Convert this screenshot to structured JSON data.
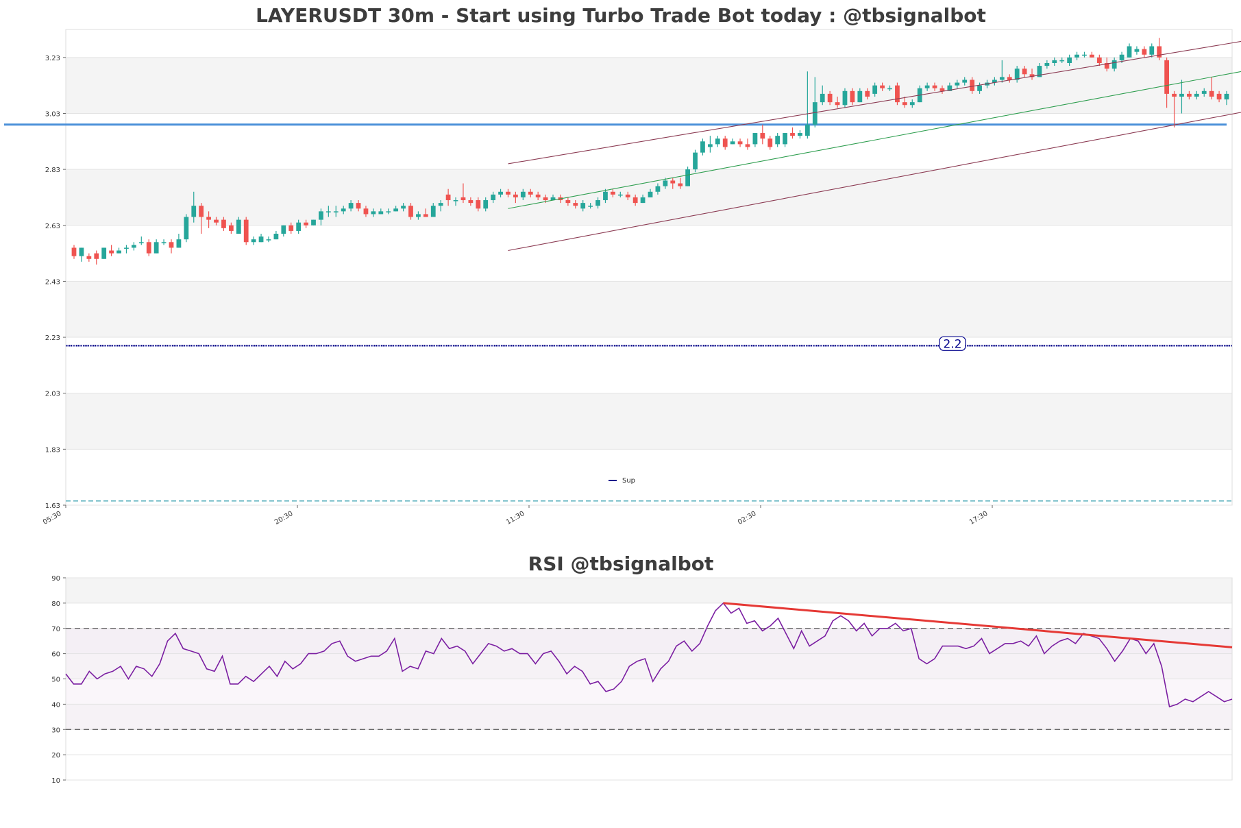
{
  "chart_data": [
    {
      "type": "candlestick",
      "title": "LAYERUSDT 30m - Start using Turbo Trade Bot today : @tbsignalbot",
      "ylim": [
        1.63,
        3.33
      ],
      "y_ticks": [
        "3.23",
        "3.03",
        "2.83",
        "2.63",
        "2.43",
        "2.23",
        "2.03",
        "1.83",
        "1.63"
      ],
      "x_ticks": [
        "05:30",
        "20:30",
        "11:30",
        "02:30",
        "17:30"
      ],
      "grid": true,
      "background_bands": true,
      "colors": {
        "up": "#26a69a",
        "down": "#ef5350",
        "channel": "#8b3a52",
        "mid_line": "#2e9e4f",
        "resistance": "#4a90d9",
        "support": "#00008b",
        "lower_dash": "#3aa0b0",
        "band": "#f4f4f4"
      },
      "candles": [
        [
          2.55,
          2.56,
          2.51,
          2.52
        ],
        [
          2.52,
          2.55,
          2.5,
          2.55
        ],
        [
          2.52,
          2.53,
          2.5,
          2.51
        ],
        [
          2.53,
          2.54,
          2.49,
          2.51
        ],
        [
          2.51,
          2.55,
          2.51,
          2.55
        ],
        [
          2.54,
          2.56,
          2.52,
          2.53
        ],
        [
          2.53,
          2.55,
          2.53,
          2.54
        ],
        [
          2.55,
          2.56,
          2.53,
          2.55
        ],
        [
          2.55,
          2.57,
          2.54,
          2.56
        ],
        [
          2.57,
          2.59,
          2.56,
          2.57
        ],
        [
          2.57,
          2.58,
          2.52,
          2.53
        ],
        [
          2.53,
          2.58,
          2.53,
          2.57
        ],
        [
          2.57,
          2.58,
          2.56,
          2.57
        ],
        [
          2.57,
          2.58,
          2.53,
          2.55
        ],
        [
          2.55,
          2.6,
          2.55,
          2.58
        ],
        [
          2.58,
          2.67,
          2.57,
          2.66
        ],
        [
          2.66,
          2.75,
          2.64,
          2.7
        ],
        [
          2.7,
          2.71,
          2.6,
          2.66
        ],
        [
          2.66,
          2.68,
          2.62,
          2.65
        ],
        [
          2.65,
          2.66,
          2.63,
          2.64
        ],
        [
          2.65,
          2.66,
          2.61,
          2.62
        ],
        [
          2.63,
          2.64,
          2.6,
          2.61
        ],
        [
          2.6,
          2.66,
          2.6,
          2.65
        ],
        [
          2.65,
          2.66,
          2.56,
          2.57
        ],
        [
          2.57,
          2.59,
          2.56,
          2.58
        ],
        [
          2.57,
          2.6,
          2.57,
          2.59
        ],
        [
          2.58,
          2.59,
          2.57,
          2.58
        ],
        [
          2.58,
          2.61,
          2.58,
          2.6
        ],
        [
          2.6,
          2.63,
          2.59,
          2.63
        ],
        [
          2.63,
          2.64,
          2.6,
          2.61
        ],
        [
          2.61,
          2.65,
          2.6,
          2.64
        ],
        [
          2.64,
          2.65,
          2.62,
          2.63
        ],
        [
          2.63,
          2.65,
          2.63,
          2.65
        ],
        [
          2.65,
          2.69,
          2.63,
          2.68
        ],
        [
          2.68,
          2.7,
          2.66,
          2.68
        ],
        [
          2.68,
          2.7,
          2.66,
          2.68
        ],
        [
          2.68,
          2.7,
          2.67,
          2.69
        ],
        [
          2.69,
          2.72,
          2.68,
          2.71
        ],
        [
          2.71,
          2.72,
          2.68,
          2.69
        ],
        [
          2.69,
          2.7,
          2.66,
          2.67
        ],
        [
          2.67,
          2.69,
          2.66,
          2.68
        ],
        [
          2.67,
          2.69,
          2.67,
          2.68
        ],
        [
          2.68,
          2.69,
          2.67,
          2.68
        ],
        [
          2.68,
          2.7,
          2.68,
          2.69
        ],
        [
          2.69,
          2.71,
          2.68,
          2.7
        ],
        [
          2.7,
          2.71,
          2.65,
          2.66
        ],
        [
          2.66,
          2.68,
          2.65,
          2.67
        ],
        [
          2.67,
          2.69,
          2.66,
          2.66
        ],
        [
          2.66,
          2.71,
          2.66,
          2.7
        ],
        [
          2.7,
          2.72,
          2.68,
          2.71
        ],
        [
          2.74,
          2.76,
          2.7,
          2.72
        ],
        [
          2.72,
          2.73,
          2.7,
          2.72
        ],
        [
          2.73,
          2.78,
          2.71,
          2.72
        ],
        [
          2.72,
          2.73,
          2.7,
          2.71
        ],
        [
          2.72,
          2.73,
          2.68,
          2.69
        ],
        [
          2.69,
          2.73,
          2.68,
          2.72
        ],
        [
          2.72,
          2.75,
          2.71,
          2.74
        ],
        [
          2.74,
          2.76,
          2.73,
          2.75
        ],
        [
          2.75,
          2.76,
          2.73,
          2.74
        ],
        [
          2.74,
          2.75,
          2.71,
          2.73
        ],
        [
          2.73,
          2.76,
          2.72,
          2.75
        ],
        [
          2.75,
          2.76,
          2.73,
          2.74
        ],
        [
          2.74,
          2.75,
          2.72,
          2.73
        ],
        [
          2.73,
          2.74,
          2.71,
          2.72
        ],
        [
          2.72,
          2.74,
          2.72,
          2.73
        ],
        [
          2.73,
          2.74,
          2.71,
          2.72
        ],
        [
          2.72,
          2.73,
          2.7,
          2.71
        ],
        [
          2.71,
          2.72,
          2.69,
          2.7
        ],
        [
          2.69,
          2.72,
          2.68,
          2.71
        ],
        [
          2.7,
          2.71,
          2.69,
          2.7
        ],
        [
          2.7,
          2.73,
          2.69,
          2.72
        ],
        [
          2.72,
          2.76,
          2.71,
          2.75
        ],
        [
          2.75,
          2.76,
          2.73,
          2.74
        ],
        [
          2.74,
          2.75,
          2.73,
          2.74
        ],
        [
          2.74,
          2.75,
          2.72,
          2.73
        ],
        [
          2.73,
          2.74,
          2.7,
          2.71
        ],
        [
          2.71,
          2.74,
          2.71,
          2.73
        ],
        [
          2.73,
          2.76,
          2.73,
          2.75
        ],
        [
          2.75,
          2.78,
          2.74,
          2.77
        ],
        [
          2.77,
          2.8,
          2.76,
          2.79
        ],
        [
          2.79,
          2.8,
          2.76,
          2.78
        ],
        [
          2.78,
          2.8,
          2.76,
          2.77
        ],
        [
          2.77,
          2.84,
          2.77,
          2.83
        ],
        [
          2.83,
          2.9,
          2.82,
          2.89
        ],
        [
          2.89,
          2.94,
          2.88,
          2.93
        ],
        [
          2.91,
          2.95,
          2.89,
          2.92
        ],
        [
          2.92,
          2.95,
          2.91,
          2.94
        ],
        [
          2.94,
          2.95,
          2.9,
          2.91
        ],
        [
          2.92,
          2.94,
          2.92,
          2.93
        ],
        [
          2.93,
          2.94,
          2.91,
          2.92
        ],
        [
          2.92,
          2.94,
          2.9,
          2.91
        ],
        [
          2.92,
          2.96,
          2.91,
          2.96
        ],
        [
          2.96,
          2.99,
          2.92,
          2.94
        ],
        [
          2.94,
          2.95,
          2.9,
          2.91
        ],
        [
          2.92,
          2.96,
          2.91,
          2.95
        ],
        [
          2.92,
          2.96,
          2.91,
          2.96
        ],
        [
          2.96,
          2.98,
          2.94,
          2.95
        ],
        [
          2.95,
          2.97,
          2.94,
          2.96
        ],
        [
          2.95,
          3.18,
          2.94,
          2.99
        ],
        [
          2.99,
          3.16,
          2.98,
          3.07
        ],
        [
          3.07,
          3.13,
          3.06,
          3.1
        ],
        [
          3.1,
          3.11,
          3.06,
          3.07
        ],
        [
          3.07,
          3.09,
          3.05,
          3.06
        ],
        [
          3.06,
          3.12,
          3.05,
          3.11
        ],
        [
          3.11,
          3.12,
          3.06,
          3.07
        ],
        [
          3.07,
          3.12,
          3.07,
          3.11
        ],
        [
          3.11,
          3.12,
          3.08,
          3.09
        ],
        [
          3.1,
          3.14,
          3.09,
          3.13
        ],
        [
          3.13,
          3.14,
          3.11,
          3.12
        ],
        [
          3.12,
          3.13,
          3.11,
          3.12
        ],
        [
          3.13,
          3.14,
          3.06,
          3.07
        ],
        [
          3.07,
          3.09,
          3.05,
          3.06
        ],
        [
          3.06,
          3.08,
          3.05,
          3.07
        ],
        [
          3.07,
          3.13,
          3.07,
          3.12
        ],
        [
          3.12,
          3.14,
          3.11,
          3.13
        ],
        [
          3.13,
          3.14,
          3.11,
          3.12
        ],
        [
          3.12,
          3.13,
          3.1,
          3.11
        ],
        [
          3.11,
          3.14,
          3.11,
          3.13
        ],
        [
          3.13,
          3.15,
          3.12,
          3.14
        ],
        [
          3.14,
          3.16,
          3.13,
          3.15
        ],
        [
          3.15,
          3.16,
          3.1,
          3.11
        ],
        [
          3.11,
          3.14,
          3.1,
          3.13
        ],
        [
          3.13,
          3.15,
          3.12,
          3.14
        ],
        [
          3.14,
          3.16,
          3.13,
          3.15
        ],
        [
          3.15,
          3.22,
          3.14,
          3.16
        ],
        [
          3.16,
          3.17,
          3.14,
          3.15
        ],
        [
          3.15,
          3.2,
          3.14,
          3.19
        ],
        [
          3.19,
          3.2,
          3.16,
          3.17
        ],
        [
          3.17,
          3.19,
          3.15,
          3.16
        ],
        [
          3.16,
          3.21,
          3.16,
          3.2
        ],
        [
          3.2,
          3.22,
          3.19,
          3.21
        ],
        [
          3.21,
          3.23,
          3.2,
          3.22
        ],
        [
          3.22,
          3.23,
          3.21,
          3.22
        ],
        [
          3.21,
          3.24,
          3.2,
          3.23
        ],
        [
          3.23,
          3.25,
          3.22,
          3.24
        ],
        [
          3.24,
          3.25,
          3.23,
          3.24
        ],
        [
          3.24,
          3.25,
          3.23,
          3.23
        ],
        [
          3.23,
          3.24,
          3.2,
          3.21
        ],
        [
          3.21,
          3.23,
          3.18,
          3.19
        ],
        [
          3.19,
          3.23,
          3.18,
          3.22
        ],
        [
          3.22,
          3.25,
          3.21,
          3.24
        ],
        [
          3.23,
          3.28,
          3.23,
          3.27
        ],
        [
          3.25,
          3.27,
          3.24,
          3.26
        ],
        [
          3.26,
          3.27,
          3.23,
          3.24
        ],
        [
          3.24,
          3.28,
          3.23,
          3.27
        ],
        [
          3.27,
          3.3,
          3.22,
          3.23
        ],
        [
          3.22,
          3.23,
          3.05,
          3.1
        ],
        [
          3.1,
          3.11,
          2.98,
          3.09
        ],
        [
          3.09,
          3.15,
          3.03,
          3.1
        ],
        [
          3.1,
          3.11,
          3.08,
          3.09
        ],
        [
          3.09,
          3.11,
          3.08,
          3.1
        ],
        [
          3.1,
          3.12,
          3.09,
          3.11
        ],
        [
          3.11,
          3.16,
          3.08,
          3.09
        ],
        [
          3.1,
          3.11,
          3.07,
          3.08
        ],
        [
          3.08,
          3.11,
          3.06,
          3.1
        ]
      ],
      "lines": {
        "resistance": 2.99,
        "support": 2.2,
        "support_label": "2.2",
        "lower_dash": 1.645,
        "channel_upper": {
          "x": [
            58,
            170
          ],
          "y": [
            2.85,
            3.35
          ]
        },
        "channel_lower": {
          "x": [
            58,
            175
          ],
          "y": [
            2.54,
            3.13
          ]
        },
        "channel_mid": {
          "x": [
            58,
            180
          ],
          "y": [
            2.69,
            3.3
          ]
        }
      },
      "legend": [
        {
          "name": "Sup",
          "color": "#00008b"
        }
      ],
      "legend_position": "bottom-center"
    },
    {
      "type": "line",
      "title": "RSI @tbsignalbot",
      "ylim": [
        10,
        90
      ],
      "y_ticks": [
        "90",
        "80",
        "70",
        "60",
        "50",
        "40",
        "30",
        "20",
        "10"
      ],
      "overbought": 70,
      "oversold": 30,
      "colors": {
        "rsi": "#7b1fa2",
        "trend": "#e53935",
        "levels": "#555555"
      },
      "series": [
        {
          "values": [
            52,
            48,
            48,
            53,
            50,
            52,
            53,
            55,
            50,
            55,
            54,
            51,
            56,
            65,
            68,
            62,
            61,
            60,
            54,
            53,
            59,
            48,
            48,
            51,
            49,
            52,
            55,
            51,
            57,
            54,
            56,
            60,
            60,
            61,
            64,
            65,
            59,
            57,
            58,
            59,
            59,
            61,
            66,
            53,
            55,
            54,
            61,
            60,
            66,
            62,
            63,
            61,
            56,
            60,
            64,
            63,
            61,
            62,
            60,
            60,
            56,
            60,
            61,
            57,
            52,
            55,
            53,
            48,
            49,
            45,
            46,
            49,
            55,
            57,
            58,
            49,
            54,
            57,
            63,
            65,
            61,
            64,
            71,
            77,
            80,
            76,
            78,
            72,
            73,
            69,
            71,
            74,
            68,
            62,
            69,
            63,
            65,
            67,
            73,
            75,
            73,
            69,
            72,
            67,
            70,
            70,
            72,
            69,
            70,
            58,
            56,
            58,
            63,
            63,
            63,
            62,
            63,
            66,
            60,
            62,
            64,
            64,
            65,
            63,
            67,
            60,
            63,
            65,
            66,
            64,
            68,
            67,
            66,
            62,
            57,
            61,
            66,
            65,
            60,
            64,
            55,
            39,
            40,
            42,
            41,
            43,
            45,
            43,
            41,
            42
          ]
        }
      ],
      "trendline": {
        "x": [
          84,
          149
        ],
        "y": [
          80,
          62.5
        ]
      }
    }
  ]
}
